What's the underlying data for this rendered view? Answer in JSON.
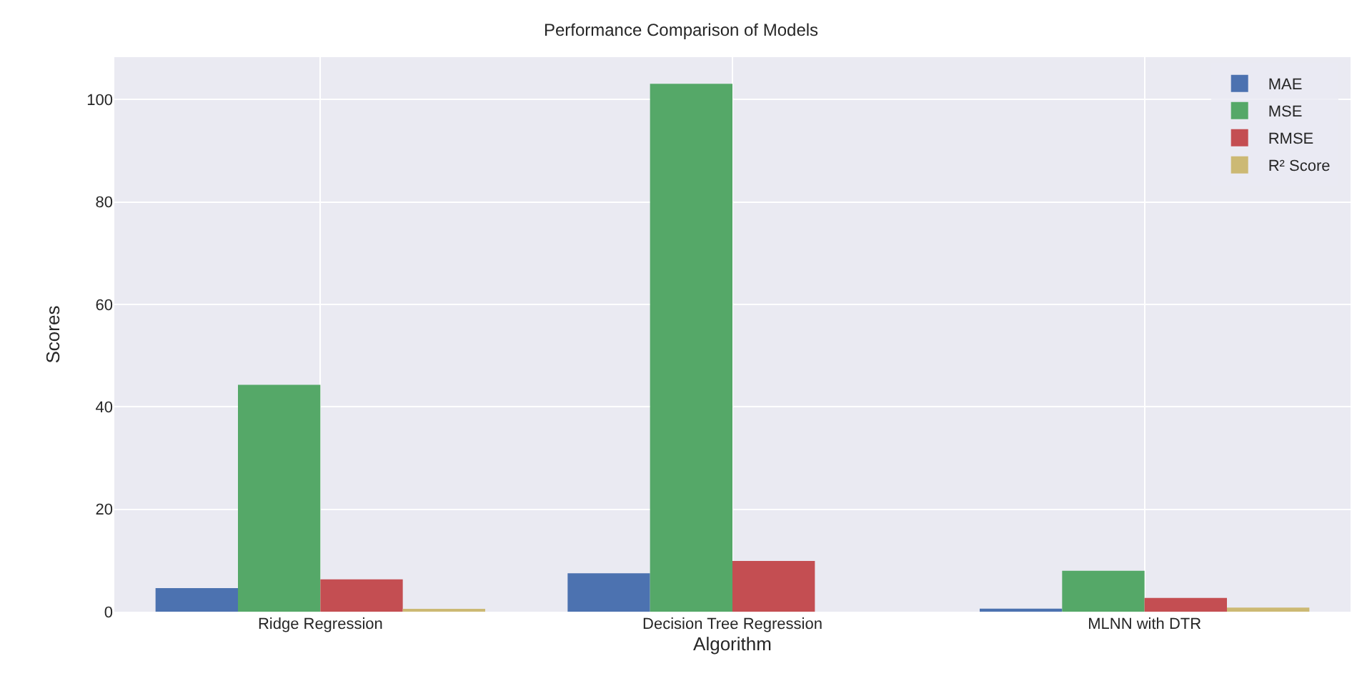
{
  "chart_data": {
    "type": "bar",
    "title": "Performance Comparison of Models",
    "xlabel": "Algorithm",
    "ylabel": "Scores",
    "categories": [
      "Ridge Regression",
      "Decision Tree Regression",
      "MLNN with DTR"
    ],
    "series": [
      {
        "name": "MAE",
        "color": "#4c72b0",
        "values": [
          4.6,
          7.5,
          0.6
        ]
      },
      {
        "name": "MSE",
        "color": "#55a868",
        "values": [
          44.3,
          103.1,
          8.0
        ]
      },
      {
        "name": "RMSE",
        "color": "#c44e52",
        "values": [
          6.3,
          9.9,
          2.7
        ]
      },
      {
        "name": "R² Score",
        "color": "#ccb974",
        "values": [
          0.4,
          0.0,
          0.8
        ]
      }
    ],
    "ylim": [
      0,
      108.3
    ],
    "yticks": [
      0,
      20,
      40,
      60,
      80,
      100
    ],
    "grid": true,
    "legend": "top right"
  }
}
